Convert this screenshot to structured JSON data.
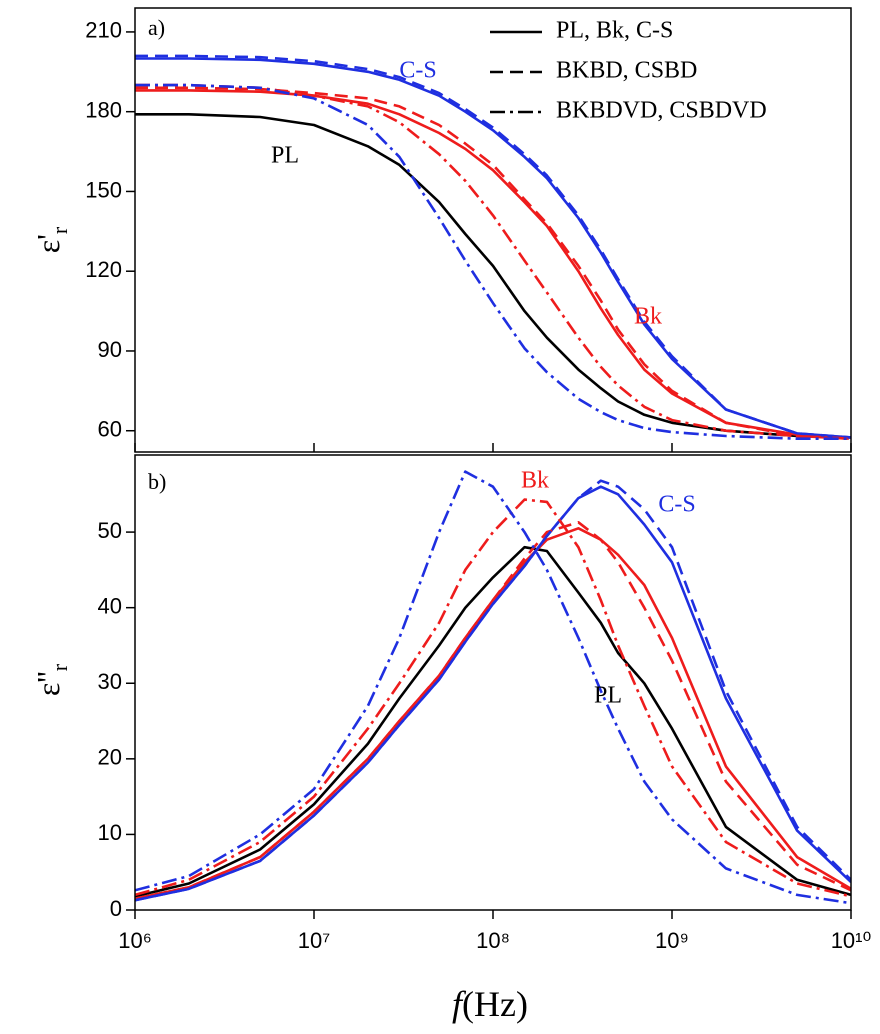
{
  "chart_data": [
    {
      "type": "line",
      "panel_label": "a)",
      "ylabel": {
        "main": "ε'",
        "sub": "r"
      },
      "x_scale": "log",
      "xlim": [
        1000000,
        10000000000
      ],
      "xticks": [
        1000000,
        10000000,
        100000000,
        1000000000,
        10000000000
      ],
      "ylim": [
        52,
        219
      ],
      "yticks": [
        60,
        90,
        120,
        150,
        180,
        210
      ],
      "x": [
        1000000,
        2000000,
        5000000,
        10000000,
        20000000,
        30000000,
        50000000,
        70000000,
        100000000,
        150000000,
        200000000,
        300000000,
        400000000,
        500000000,
        700000000,
        1000000000,
        2000000000,
        5000000000,
        10000000000
      ],
      "series": [
        {
          "color": "#000000",
          "dash": "solid",
          "values": [
            179,
            179,
            178,
            175,
            167,
            160,
            146,
            134,
            122,
            105,
            95,
            83,
            76,
            71,
            66,
            63,
            60,
            58,
            57.5
          ]
        },
        {
          "color": "#ee1c1c",
          "dash": "solid",
          "values": [
            188,
            188,
            187.5,
            186,
            183,
            179,
            172,
            166,
            158,
            146,
            137,
            120,
            106,
            96,
            83,
            74,
            63,
            58.5,
            57.5
          ]
        },
        {
          "color": "#1f2fe0",
          "dash": "solid",
          "values": [
            200,
            200,
            199.5,
            198,
            195,
            192,
            186,
            180,
            173,
            163,
            155,
            140,
            127,
            116,
            100,
            87,
            68,
            59,
            57.5
          ]
        },
        {
          "color": "#ee1c1c",
          "dash": "dashed",
          "values": [
            189,
            189,
            188.5,
            187,
            185,
            182,
            175,
            168,
            160,
            147,
            138,
            122,
            109,
            98,
            85,
            75,
            63,
            58,
            57
          ]
        },
        {
          "color": "#1f2fe0",
          "dash": "dashed",
          "values": [
            201,
            201,
            200.5,
            199,
            196,
            193,
            187,
            181,
            174,
            164,
            156,
            141,
            128,
            117,
            101,
            88,
            68,
            59,
            57.5
          ]
        },
        {
          "color": "#ee1c1c",
          "dash": "dashdot",
          "values": [
            190,
            190,
            189,
            186,
            182,
            176,
            164,
            154,
            141,
            124,
            112,
            95,
            84,
            77,
            69,
            64,
            60,
            58,
            57
          ]
        },
        {
          "color": "#1f2fe0",
          "dash": "dashdot",
          "values": [
            190,
            190,
            189,
            185,
            175,
            163,
            140,
            124,
            108,
            91,
            82,
            72,
            67,
            64,
            61,
            59.5,
            58,
            57,
            57
          ]
        }
      ],
      "legend": [
        {
          "label": "PL, Bk, C-S",
          "dash": "solid"
        },
        {
          "label": "BKBD, CSBD",
          "dash": "dashed"
        },
        {
          "label": "BKBDVD, CSBDVD",
          "dash": "dashdot"
        }
      ],
      "annotations": [
        {
          "text": "C-S",
          "color": "#1f2fe0"
        },
        {
          "text": "PL",
          "color": "#000000"
        },
        {
          "text": "Bk",
          "color": "#ee1c1c"
        }
      ]
    },
    {
      "type": "line",
      "panel_label": "b)",
      "ylabel": {
        "main": "ε''",
        "sub": "r"
      },
      "xlabel": {
        "italic": "f",
        "rest": "(Hz)"
      },
      "x_scale": "log",
      "xlim": [
        1000000,
        10000000000
      ],
      "xticks": [
        {
          "value": 1000000,
          "label": "10⁶"
        },
        {
          "value": 10000000,
          "label": "10⁷"
        },
        {
          "value": 100000000,
          "label": "10⁸"
        },
        {
          "value": 1000000000,
          "label": "10⁹"
        },
        {
          "value": 10000000000,
          "label": "10¹⁰"
        }
      ],
      "ylim": [
        0,
        60.2
      ],
      "yticks": [
        0,
        10,
        20,
        30,
        40,
        50
      ],
      "x": [
        1000000,
        2000000,
        5000000,
        10000000,
        20000000,
        30000000,
        50000000,
        70000000,
        100000000,
        150000000,
        200000000,
        300000000,
        400000000,
        500000000,
        700000000,
        1000000000,
        2000000000,
        5000000000,
        10000000000
      ],
      "series": [
        {
          "color": "#000000",
          "dash": "solid",
          "values": [
            1.8,
            3.5,
            8,
            14,
            22,
            28,
            35,
            40,
            44,
            48,
            47.5,
            42,
            38,
            34,
            30,
            24,
            11,
            4,
            2
          ]
        },
        {
          "color": "#ee1c1c",
          "dash": "solid",
          "values": [
            1.5,
            3,
            7,
            13,
            20,
            25,
            31,
            36,
            41,
            46,
            49,
            50.5,
            49,
            47,
            43,
            36,
            19,
            7,
            2.8
          ]
        },
        {
          "color": "#1f2fe0",
          "dash": "solid",
          "values": [
            1.3,
            2.8,
            6.5,
            12.5,
            19.5,
            24.5,
            30.5,
            35.5,
            40.5,
            45.5,
            49.5,
            54.5,
            56,
            55,
            51,
            46,
            28,
            10.5,
            3.7
          ]
        },
        {
          "color": "#ee1c1c",
          "dash": "dashed",
          "values": [
            1.5,
            3,
            7,
            13,
            20,
            25,
            31,
            36,
            41,
            46.5,
            50,
            51.3,
            49,
            46,
            40,
            33,
            17,
            6,
            2.6
          ]
        },
        {
          "color": "#1f2fe0",
          "dash": "dashed",
          "values": [
            1.3,
            2.8,
            6.5,
            12.5,
            19.5,
            24.5,
            30.5,
            35.5,
            40.5,
            45.5,
            49.5,
            54.5,
            56.8,
            56,
            53,
            48,
            29,
            11,
            4
          ]
        },
        {
          "color": "#ee1c1c",
          "dash": "dashdot",
          "values": [
            2,
            4,
            9,
            15,
            24,
            30,
            38,
            45,
            50,
            54.3,
            54,
            48,
            41,
            35,
            27,
            19,
            9,
            3.5,
            1.8
          ]
        },
        {
          "color": "#1f2fe0",
          "dash": "dashdot",
          "values": [
            2.6,
            4.5,
            10,
            16,
            27,
            36,
            50,
            58,
            56,
            50,
            45,
            36,
            29,
            24,
            17,
            12,
            5.5,
            2,
            0.9
          ]
        }
      ],
      "annotations": [
        {
          "text": "Bk",
          "color": "#ee1c1c"
        },
        {
          "text": "C-S",
          "color": "#1f2fe0"
        },
        {
          "text": "PL",
          "color": "#000000"
        }
      ]
    }
  ]
}
